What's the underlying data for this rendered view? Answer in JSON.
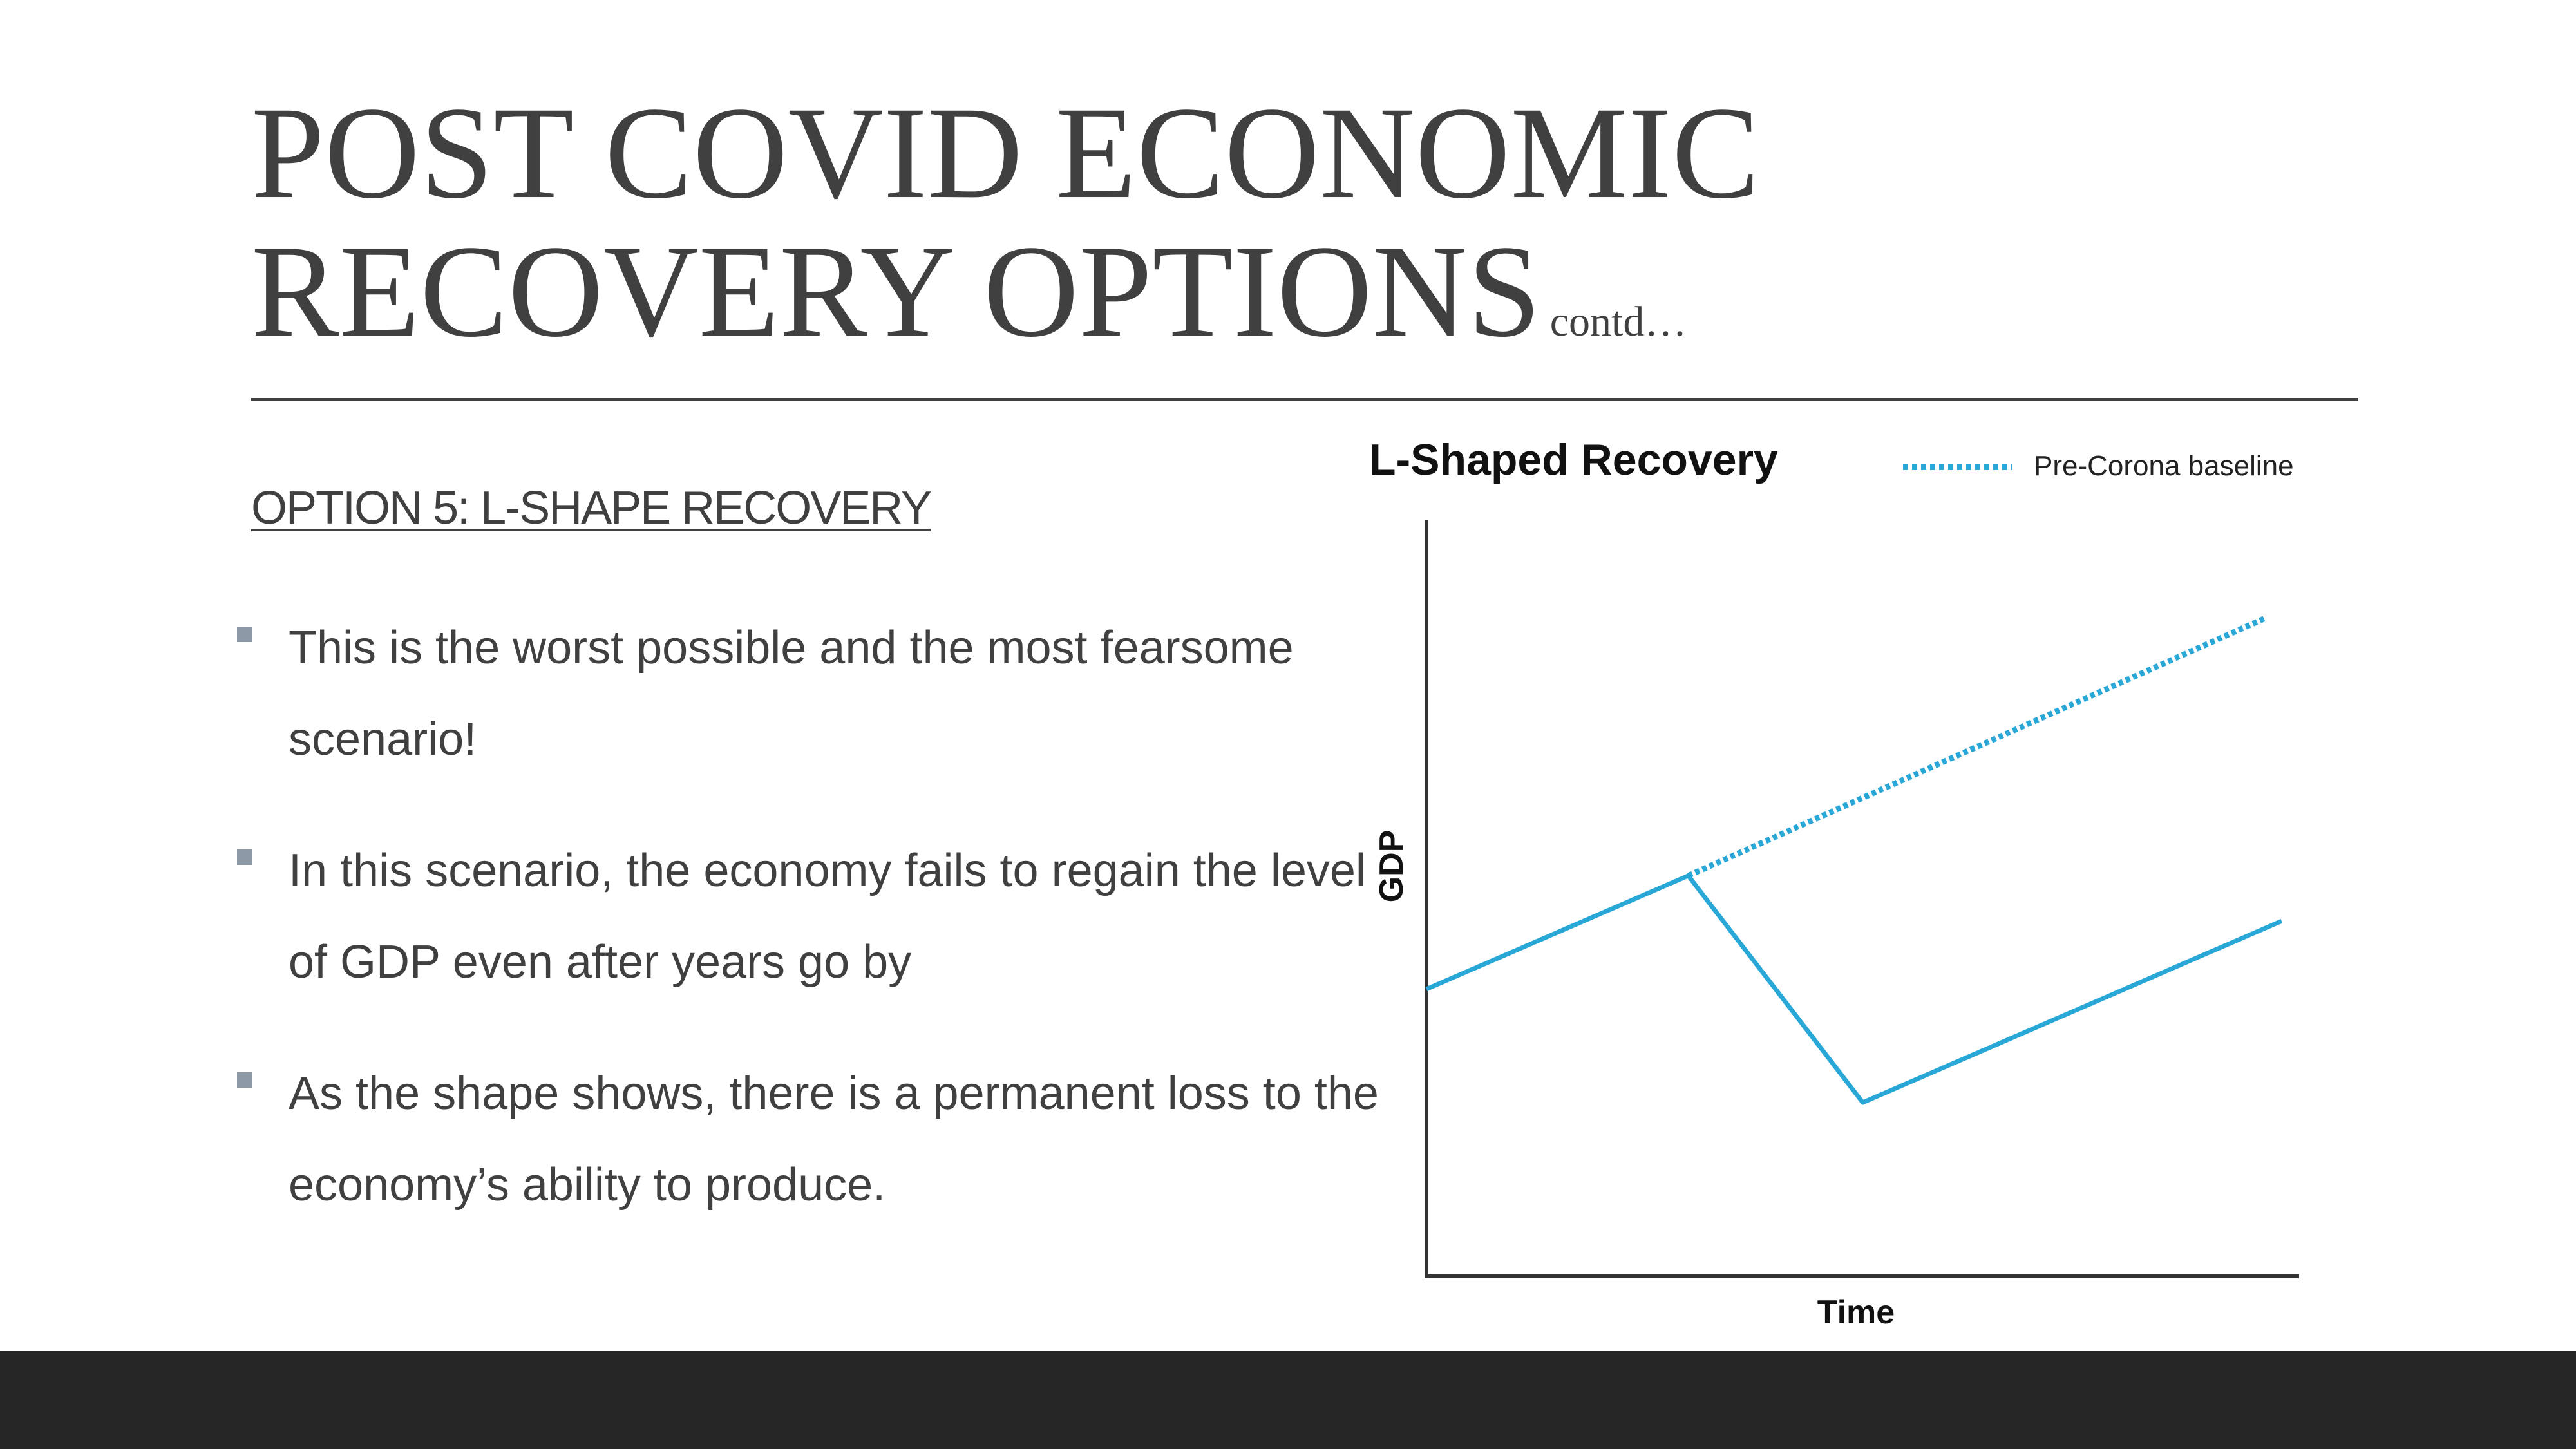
{
  "slide": {
    "title_line1": "POST COVID ECONOMIC",
    "title_line2": "RECOVERY OPTIONS",
    "title_suffix": "contd…",
    "subheading": "OPTION 5: L-SHAPE RECOVERY",
    "bullets": [
      "This is the worst possible and the most fearsome scenario!",
      "In this scenario, the economy fails to regain the level of GDP even after years go by",
      "As the shape shows, there is a permanent loss to the economy’s ability to produce."
    ]
  },
  "chart_data": {
    "type": "line",
    "title": "L-Shaped Recovery",
    "xlabel": "Time",
    "ylabel": "GDP",
    "legend_position": "top-right",
    "grid": false,
    "xlim": [
      0,
      100
    ],
    "ylim": [
      0,
      100
    ],
    "series": [
      {
        "name": "",
        "style": "solid",
        "color": "#29A8D8",
        "x": [
          0,
          30,
          50,
          98
        ],
        "y": [
          38,
          53,
          23,
          47
        ]
      },
      {
        "name": "Pre-Corona baseline",
        "style": "dotted",
        "color": "#29A8D8",
        "x": [
          30,
          96
        ],
        "y": [
          53,
          87
        ]
      }
    ]
  }
}
